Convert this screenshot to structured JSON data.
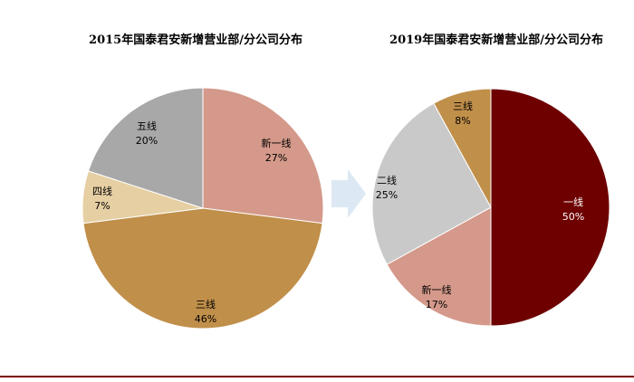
{
  "chart_data": [
    {
      "type": "pie",
      "title": "2015年国泰君安新增营业部/分公司分布",
      "start_angle": 0,
      "slices": [
        {
          "name": "新一线",
          "value": 27,
          "pct_label": "27%",
          "color": "#d4998a",
          "label_color": "#000000"
        },
        {
          "name": "三线",
          "value": 46,
          "pct_label": "46%",
          "color": "#c08f4a",
          "label_color": "#000000"
        },
        {
          "name": "四线",
          "value": 7,
          "pct_label": "7%",
          "color": "#e6cfa3",
          "label_color": "#000000"
        },
        {
          "name": "五线",
          "value": 20,
          "pct_label": "20%",
          "color": "#a8a8a8",
          "label_color": "#000000"
        }
      ]
    },
    {
      "type": "pie",
      "title": "2019年国泰君安新增营业部/分公司分布",
      "start_angle": 0,
      "slices": [
        {
          "name": "一线",
          "value": 50,
          "pct_label": "50%",
          "color": "#6e0000",
          "label_color": "#ffffff"
        },
        {
          "name": "新一线",
          "value": 17,
          "pct_label": "17%",
          "color": "#d4998a",
          "label_color": "#000000"
        },
        {
          "name": "二线",
          "value": 25,
          "pct_label": "25%",
          "color": "#c9c9c9",
          "label_color": "#000000"
        },
        {
          "name": "三线",
          "value": 8,
          "pct_label": "8%",
          "color": "#c08f4a",
          "label_color": "#000000"
        }
      ]
    }
  ],
  "arrow_color": "#dce8f3",
  "rule_color": "#7b0000"
}
